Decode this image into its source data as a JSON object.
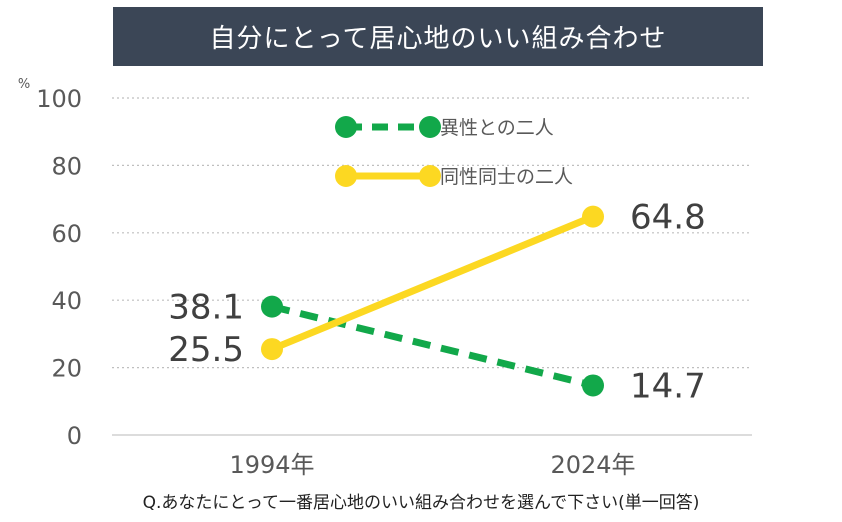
{
  "title": "自分にとって居心地のいい組み合わせ",
  "caption": "Q.あなたにとって一番居心地のいい組み合わせを選んで下さい(単一回答)",
  "colors": {
    "title_bg": "#3b4656",
    "green": "#12a84a",
    "yellow": "#fcd822",
    "grid": "#bfbfbf",
    "axis_text": "#595959"
  },
  "chart_data": {
    "type": "line",
    "title": "自分にとって居心地のいい組み合わせ",
    "categories": [
      "1994年",
      "2024年"
    ],
    "unit": "%",
    "ylim": [
      0,
      100
    ],
    "yticks": [
      0,
      20,
      40,
      60,
      80,
      100
    ],
    "grid": true,
    "legend_position": "top",
    "series": [
      {
        "name": "異性との二人",
        "values": [
          38.1,
          14.7
        ],
        "value_labels": [
          "38.1",
          "14.7"
        ],
        "style": "dashed",
        "color": "#12a84a"
      },
      {
        "name": "同性同士の二人",
        "values": [
          25.5,
          64.8
        ],
        "value_labels": [
          "25.5",
          "64.8"
        ],
        "style": "solid",
        "color": "#fcd822"
      }
    ]
  }
}
